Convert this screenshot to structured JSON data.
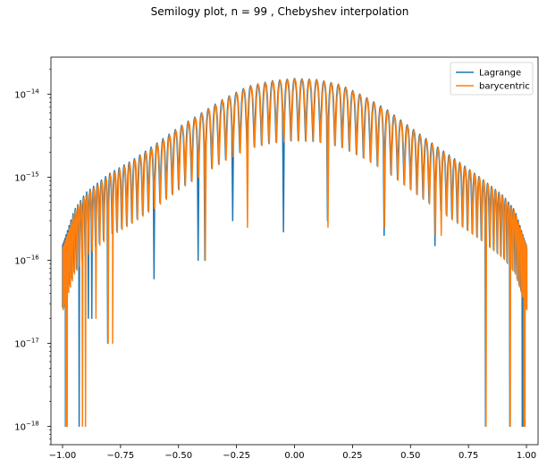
{
  "chart_data": {
    "type": "line",
    "title": "Semilogy plot, n = 99 , Chebyshev interpolation",
    "xlabel": "",
    "ylabel": "",
    "xlim": [
      -1.05,
      1.05
    ],
    "ylim": [
      6e-19,
      2.8e-14
    ],
    "yscale": "log",
    "grid": false,
    "legend_position": "top-right",
    "x_ticks": [
      {
        "value": -1.0,
        "label": "−1.00"
      },
      {
        "value": -0.75,
        "label": "−0.75"
      },
      {
        "value": -0.5,
        "label": "−0.50"
      },
      {
        "value": -0.25,
        "label": "−0.25"
      },
      {
        "value": 0.0,
        "label": "0.00"
      },
      {
        "value": 0.25,
        "label": "0.25"
      },
      {
        "value": 0.5,
        "label": "0.50"
      },
      {
        "value": 0.75,
        "label": "0.75"
      },
      {
        "value": 1.0,
        "label": "1.00"
      }
    ],
    "y_ticks": [
      {
        "value": 1e-18,
        "base": "10",
        "exp": "−18"
      },
      {
        "value": 1e-17,
        "base": "10",
        "exp": "−17"
      },
      {
        "value": 1e-16,
        "base": "10",
        "exp": "−16"
      },
      {
        "value": 1e-15,
        "base": "10",
        "exp": "−15"
      },
      {
        "value": 1e-14,
        "base": "10",
        "exp": "−14"
      }
    ],
    "series": [
      {
        "name": "Lagrange",
        "color": "#1f77b4",
        "envelope": [
          [
            -1.0,
            1.5e-16
          ],
          [
            -0.95,
            4e-16
          ],
          [
            -0.9,
            6.5e-16
          ],
          [
            -0.8,
            1.1e-15
          ],
          [
            -0.7,
            1.6e-15
          ],
          [
            -0.6,
            2.5e-15
          ],
          [
            -0.5,
            4e-15
          ],
          [
            -0.4,
            6e-15
          ],
          [
            -0.3,
            9e-15
          ],
          [
            -0.2,
            1.25e-14
          ],
          [
            -0.1,
            1.45e-14
          ],
          [
            0.0,
            1.55e-14
          ],
          [
            0.1,
            1.5e-14
          ],
          [
            0.2,
            1.3e-14
          ],
          [
            0.3,
            9.5e-15
          ],
          [
            0.4,
            6.5e-15
          ],
          [
            0.5,
            4e-15
          ],
          [
            0.6,
            2.5e-15
          ],
          [
            0.7,
            1.6e-15
          ],
          [
            0.8,
            1e-15
          ],
          [
            0.9,
            6e-16
          ],
          [
            0.95,
            4e-16
          ],
          [
            1.0,
            1.5e-16
          ]
        ],
        "dips": [
          [
            -0.985,
            1e-18
          ],
          [
            -0.93,
            1e-18
          ],
          [
            -0.88,
            2e-17
          ],
          [
            -0.81,
            1e-17
          ],
          [
            -0.6,
            6e-17
          ],
          [
            -0.4,
            1e-16
          ],
          [
            -0.26,
            3e-16
          ],
          [
            -0.04,
            2.2e-16
          ],
          [
            0.15,
            3e-16
          ],
          [
            0.38,
            2e-16
          ],
          [
            0.6,
            1.5e-16
          ],
          [
            0.82,
            1e-18
          ],
          [
            0.93,
            1e-18
          ],
          [
            0.985,
            1e-18
          ]
        ]
      },
      {
        "name": "barycentric",
        "color": "#ff7f0e",
        "envelope": [
          [
            -1.0,
            1.4e-16
          ],
          [
            -0.95,
            3.8e-16
          ],
          [
            -0.9,
            6.2e-16
          ],
          [
            -0.8,
            1.05e-15
          ],
          [
            -0.7,
            1.55e-15
          ],
          [
            -0.6,
            2.4e-15
          ],
          [
            -0.5,
            3.9e-15
          ],
          [
            -0.4,
            5.9e-15
          ],
          [
            -0.3,
            8.8e-15
          ],
          [
            -0.2,
            1.22e-14
          ],
          [
            -0.1,
            1.43e-14
          ],
          [
            0.0,
            1.53e-14
          ],
          [
            0.1,
            1.48e-14
          ],
          [
            0.2,
            1.28e-14
          ],
          [
            0.3,
            9.3e-15
          ],
          [
            0.4,
            6.3e-15
          ],
          [
            0.5,
            3.9e-15
          ],
          [
            0.6,
            2.4e-15
          ],
          [
            0.7,
            1.55e-15
          ],
          [
            0.8,
            9.8e-16
          ],
          [
            0.9,
            5.8e-16
          ],
          [
            0.95,
            3.8e-16
          ],
          [
            1.0,
            1.4e-16
          ]
        ],
        "dips": [
          [
            -0.985,
            1e-18
          ],
          [
            -0.91,
            1e-18
          ],
          [
            -0.86,
            2e-17
          ],
          [
            -0.8,
            1e-17
          ],
          [
            -0.39,
            1e-16
          ],
          [
            -0.2,
            2.5e-16
          ],
          [
            0.15,
            2.5e-16
          ],
          [
            0.38,
            2.5e-16
          ],
          [
            0.62,
            2e-16
          ],
          [
            0.82,
            1e-18
          ],
          [
            0.93,
            1e-18
          ],
          [
            0.99,
            1e-18
          ]
        ]
      }
    ]
  }
}
